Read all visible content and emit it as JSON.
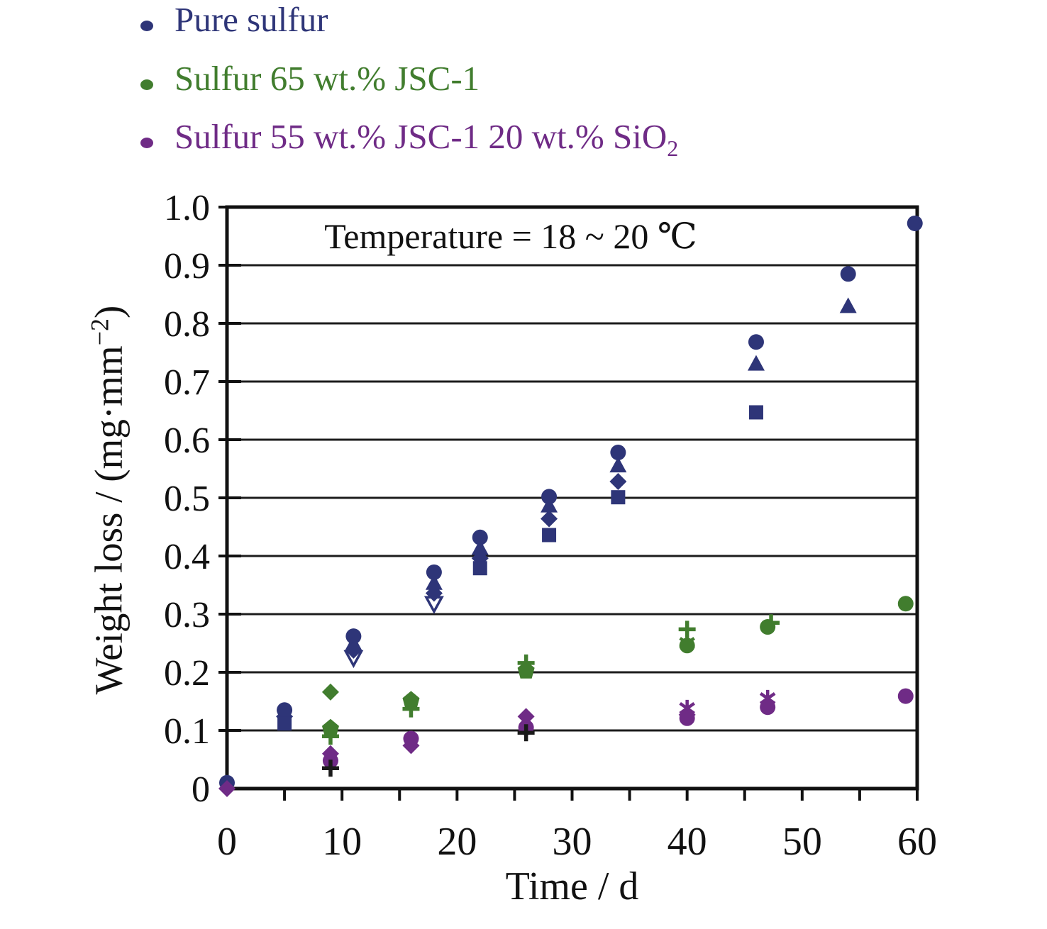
{
  "figure": {
    "annotation": "Temperature = 18  ~  20 ℃",
    "x_axis": {
      "title": "Time / d"
    },
    "y_axis": {
      "title_base": "Weight loss / (mg·mm",
      "title_sup": "−2",
      "title_close": ")"
    }
  },
  "legend": {
    "items": [
      {
        "label": "Pure sulfur",
        "label_sub": "",
        "color": "#2e3578"
      },
      {
        "label": "Sulfur 65 wt.% JSC-1",
        "label_sub": "",
        "color": "#417d2e"
      },
      {
        "label": "Sulfur 55 wt.% JSC-1 20 wt.% SiO",
        "label_sub": "2",
        "color": "#6f2b86"
      }
    ]
  },
  "chart_data": {
    "type": "scatter",
    "title": "Temperature = 18 ~ 20 ℃",
    "xlabel": "Time / d",
    "ylabel": "Weight loss / (mg·mm−2)",
    "xlim": [
      0,
      60
    ],
    "ylim": [
      0,
      1.0
    ],
    "x_tick_values": [
      0,
      10,
      20,
      30,
      40,
      50,
      60
    ],
    "x_tick_labels": [
      "0",
      "10",
      "20",
      "30",
      "40",
      "50",
      "60"
    ],
    "x_minor_tick_step": 5,
    "y_tick_values": [
      0,
      0.1,
      0.2,
      0.3,
      0.4,
      0.5,
      0.6,
      0.7,
      0.8,
      0.9,
      1.0
    ],
    "y_tick_labels": [
      "0",
      "0.1",
      "0.2",
      "0.3",
      "0.4",
      "0.5",
      "0.6",
      "0.7",
      "0.8",
      "0.9",
      "1.0"
    ],
    "grid": "horizontal",
    "legend_position": "top-left-outside",
    "grid_color": "#1c1c1c",
    "axis_color": "#111111",
    "series": [
      {
        "name": "Pure sulfur",
        "color": "#2e3578",
        "points": [
          {
            "x": 0,
            "y": 0.01,
            "marker": "circle"
          },
          {
            "x": 5,
            "y": 0.135,
            "marker": "circle"
          },
          {
            "x": 5,
            "y": 0.124,
            "marker": "diamond"
          },
          {
            "x": 5,
            "y": 0.112,
            "marker": "square"
          },
          {
            "x": 11,
            "y": 0.262,
            "marker": "circle"
          },
          {
            "x": 11,
            "y": 0.25,
            "marker": "triangle"
          },
          {
            "x": 11,
            "y": 0.238,
            "marker": "diamond"
          },
          {
            "x": 11,
            "y": 0.225,
            "marker": "triangle-down-open"
          },
          {
            "x": 18,
            "y": 0.372,
            "marker": "circle"
          },
          {
            "x": 18,
            "y": 0.354,
            "marker": "triangle"
          },
          {
            "x": 18,
            "y": 0.336,
            "marker": "diamond"
          },
          {
            "x": 18,
            "y": 0.318,
            "marker": "triangle-down-open"
          },
          {
            "x": 22,
            "y": 0.432,
            "marker": "circle"
          },
          {
            "x": 22,
            "y": 0.414,
            "marker": "triangle"
          },
          {
            "x": 22,
            "y": 0.396,
            "marker": "diamond"
          },
          {
            "x": 22,
            "y": 0.379,
            "marker": "square"
          },
          {
            "x": 28,
            "y": 0.502,
            "marker": "circle"
          },
          {
            "x": 28,
            "y": 0.487,
            "marker": "triangle"
          },
          {
            "x": 28,
            "y": 0.464,
            "marker": "diamond"
          },
          {
            "x": 28,
            "y": 0.436,
            "marker": "square"
          },
          {
            "x": 34,
            "y": 0.578,
            "marker": "circle"
          },
          {
            "x": 34,
            "y": 0.556,
            "marker": "triangle"
          },
          {
            "x": 34,
            "y": 0.528,
            "marker": "diamond"
          },
          {
            "x": 34,
            "y": 0.501,
            "marker": "square"
          },
          {
            "x": 46,
            "y": 0.768,
            "marker": "circle"
          },
          {
            "x": 46,
            "y": 0.731,
            "marker": "triangle"
          },
          {
            "x": 46,
            "y": 0.647,
            "marker": "square"
          },
          {
            "x": 54,
            "y": 0.885,
            "marker": "circle"
          },
          {
            "x": 54,
            "y": 0.83,
            "marker": "triangle"
          },
          {
            "x": 59.8,
            "y": 0.972,
            "marker": "circle"
          }
        ]
      },
      {
        "name": "Sulfur 65 wt.% JSC-1",
        "color": "#417d2e",
        "points": [
          {
            "x": 9,
            "y": 0.166,
            "marker": "diamond"
          },
          {
            "x": 9,
            "y": 0.104,
            "marker": "pentagon"
          },
          {
            "x": 9,
            "y": 0.09,
            "marker": "plus"
          },
          {
            "x": 16,
            "y": 0.152,
            "marker": "pentagon"
          },
          {
            "x": 16,
            "y": 0.137,
            "marker": "plus"
          },
          {
            "x": 26,
            "y": 0.216,
            "marker": "plus"
          },
          {
            "x": 26,
            "y": 0.204,
            "marker": "pentagon"
          },
          {
            "x": 40,
            "y": 0.274,
            "marker": "plus"
          },
          {
            "x": 40,
            "y": 0.25,
            "marker": "star"
          },
          {
            "x": 40,
            "y": 0.246,
            "marker": "circle"
          },
          {
            "x": 47.3,
            "y": 0.285,
            "marker": "plus"
          },
          {
            "x": 47,
            "y": 0.278,
            "marker": "circle"
          },
          {
            "x": 59,
            "y": 0.318,
            "marker": "circle"
          }
        ]
      },
      {
        "name": "Sulfur 55 wt.% JSC-1 20 wt.% SiO2",
        "color": "#6f2b86",
        "points": [
          {
            "x": 0,
            "y": 0.0,
            "marker": "diamond"
          },
          {
            "x": 9,
            "y": 0.06,
            "marker": "diamond"
          },
          {
            "x": 9,
            "y": 0.048,
            "marker": "circle"
          },
          {
            "x": 9,
            "y": 0.035,
            "marker": "plus",
            "color": "#1a1a1a"
          },
          {
            "x": 16,
            "y": 0.086,
            "marker": "circle"
          },
          {
            "x": 16,
            "y": 0.074,
            "marker": "diamond"
          },
          {
            "x": 26,
            "y": 0.124,
            "marker": "diamond"
          },
          {
            "x": 26,
            "y": 0.105,
            "marker": "circle"
          },
          {
            "x": 26,
            "y": 0.096,
            "marker": "plus",
            "color": "#1a1a1a"
          },
          {
            "x": 40,
            "y": 0.138,
            "marker": "star"
          },
          {
            "x": 40,
            "y": 0.127,
            "marker": "diamond"
          },
          {
            "x": 40,
            "y": 0.121,
            "marker": "circle"
          },
          {
            "x": 47,
            "y": 0.155,
            "marker": "star"
          },
          {
            "x": 47,
            "y": 0.14,
            "marker": "circle"
          },
          {
            "x": 59,
            "y": 0.159,
            "marker": "circle"
          }
        ]
      }
    ]
  }
}
